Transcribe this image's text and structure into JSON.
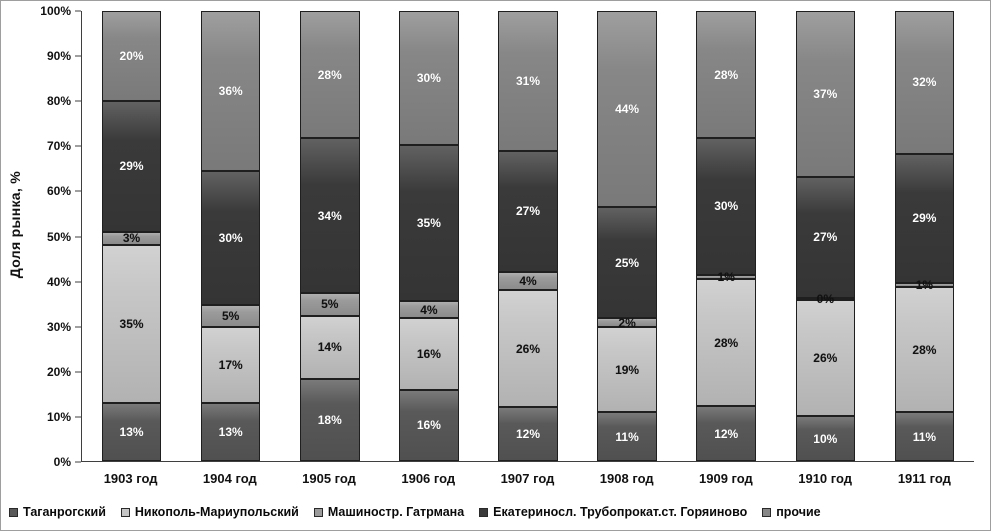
{
  "chart_data": {
    "type": "bar",
    "stacked": true,
    "percent_stacked": true,
    "title": "",
    "xlabel": "",
    "ylabel": "Доля рынка, %",
    "ylim": [
      0,
      100
    ],
    "grid": false,
    "legend_position": "bottom",
    "y_ticks": [
      "0%",
      "10%",
      "20%",
      "30%",
      "40%",
      "50%",
      "60%",
      "70%",
      "80%",
      "90%",
      "100%"
    ],
    "categories": [
      "1903 год",
      "1904 год",
      "1905 год",
      "1906 год",
      "1907 год",
      "1908 год",
      "1909 год",
      "1910 год",
      "1911 год"
    ],
    "series": [
      {
        "name": "Таганрогский",
        "color": "#595959",
        "label_color": "#ffffff",
        "values": [
          13,
          13,
          18,
          16,
          12,
          11,
          12,
          10,
          11
        ]
      },
      {
        "name": "Никополь-Мариупольский",
        "color": "#c6c6c6",
        "label_color": "#111111",
        "values": [
          35,
          17,
          14,
          16,
          26,
          19,
          28,
          26,
          28
        ]
      },
      {
        "name": "Машиностр. Гатрмана",
        "color": "#9b9b9b",
        "label_color": "#111111",
        "values": [
          3,
          5,
          5,
          4,
          4,
          2,
          1,
          0,
          1
        ]
      },
      {
        "name": "Екатериносл. Трубопрокат.ст. Горяиново",
        "color": "#3a3a3a",
        "label_color": "#ffffff",
        "values": [
          29,
          30,
          34,
          35,
          27,
          25,
          30,
          27,
          29
        ]
      },
      {
        "name": "прочие",
        "color": "#878787",
        "label_color": "#ffffff",
        "values": [
          20,
          36,
          28,
          30,
          31,
          44,
          28,
          37,
          32
        ]
      }
    ]
  }
}
